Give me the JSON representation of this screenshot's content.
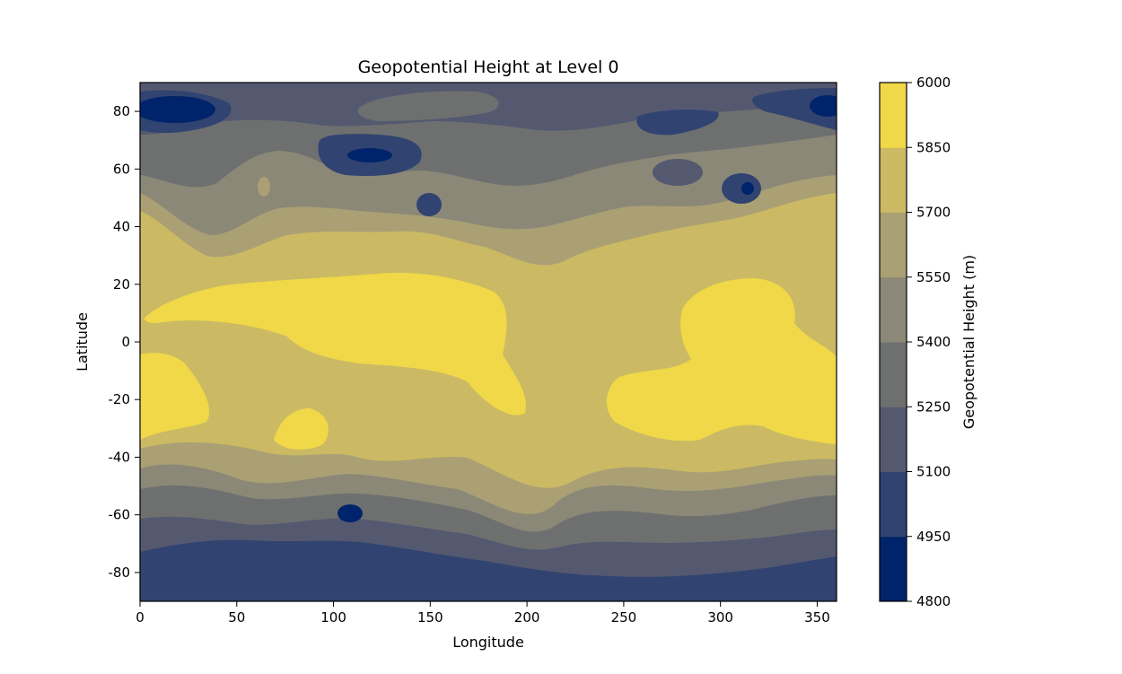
{
  "chart_data": {
    "type": "heatmap",
    "subtype": "filled-contour-map",
    "title": "Geopotential Height at Level 0",
    "xlabel": "Longitude",
    "ylabel": "Latitude",
    "xlim": [
      0,
      360
    ],
    "ylim": [
      -90,
      90
    ],
    "x_ticks": [
      0,
      50,
      100,
      150,
      200,
      250,
      300,
      350
    ],
    "y_ticks": [
      -80,
      -60,
      -40,
      -20,
      0,
      20,
      40,
      60,
      80
    ],
    "grid": false,
    "colorbar": {
      "label": "Geopotential Height (m)",
      "range": [
        4800,
        6000
      ],
      "ticks": [
        4800,
        4950,
        5100,
        5250,
        5400,
        5550,
        5700,
        5850,
        6000
      ],
      "colors": [
        "#00246b",
        "#314370",
        "#545970",
        "#6e7070",
        "#8b8877",
        "#aaa074",
        "#cbba63",
        "#f0d848"
      ]
    },
    "latitude_band_levels": [
      {
        "lat_range": [
          -90,
          -75
        ],
        "band": "4950-5100"
      },
      {
        "lat_range": [
          -75,
          -62
        ],
        "band": "5100-5250"
      },
      {
        "lat_range": [
          -62,
          -50
        ],
        "band": "5250-5400"
      },
      {
        "lat_range": [
          -50,
          -40
        ],
        "band": "5550-5700"
      },
      {
        "lat_range": [
          -40,
          40
        ],
        "band": "5700-6000"
      },
      {
        "lat_range": [
          40,
          55
        ],
        "band": "5400-5700"
      },
      {
        "lat_range": [
          55,
          70
        ],
        "band": "5250-5400"
      },
      {
        "lat_range": [
          70,
          90
        ],
        "band": "4950-5250"
      }
    ]
  }
}
